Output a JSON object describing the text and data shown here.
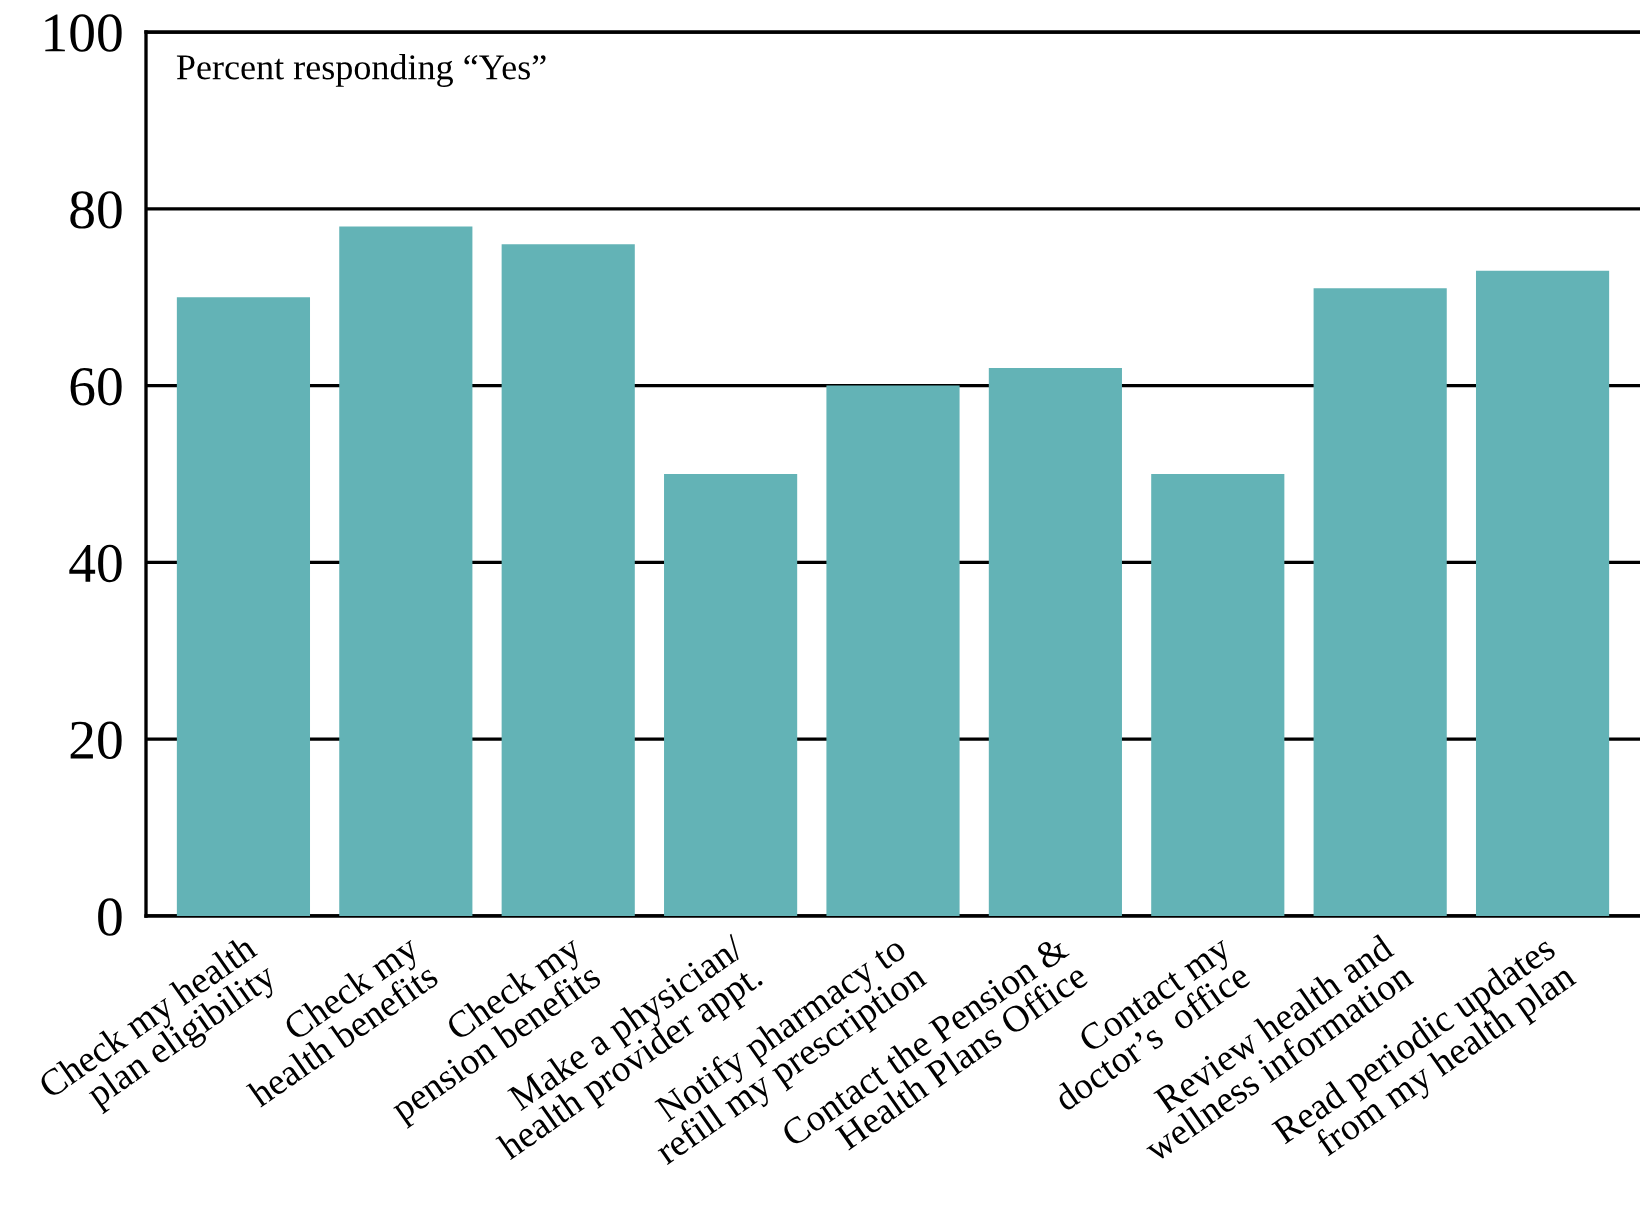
{
  "chart_data": {
    "type": "bar",
    "categories": [
      "Check my health\nplan eligibility",
      "Check my\nhealth benefits",
      "Check my\npension benefits",
      "Make a physician/\nhealth provider appt.",
      "Notify pharmacy to\nrefill my prescription",
      "Contact the Pension &\nHealth Plans Office",
      "Contact my\ndoctor’s  office",
      "Review health and\nwellness information",
      "Read periodic updates\nfrom my health plan"
    ],
    "values": [
      70,
      78,
      76,
      50,
      60,
      62,
      50,
      71,
      73
    ],
    "color": "#63b3b6",
    "ylim": [
      0,
      100
    ],
    "yticks": [
      0,
      20,
      40,
      60,
      80,
      100
    ],
    "grid": "y",
    "annotations": [
      "Percent responding “Yes”"
    ]
  }
}
